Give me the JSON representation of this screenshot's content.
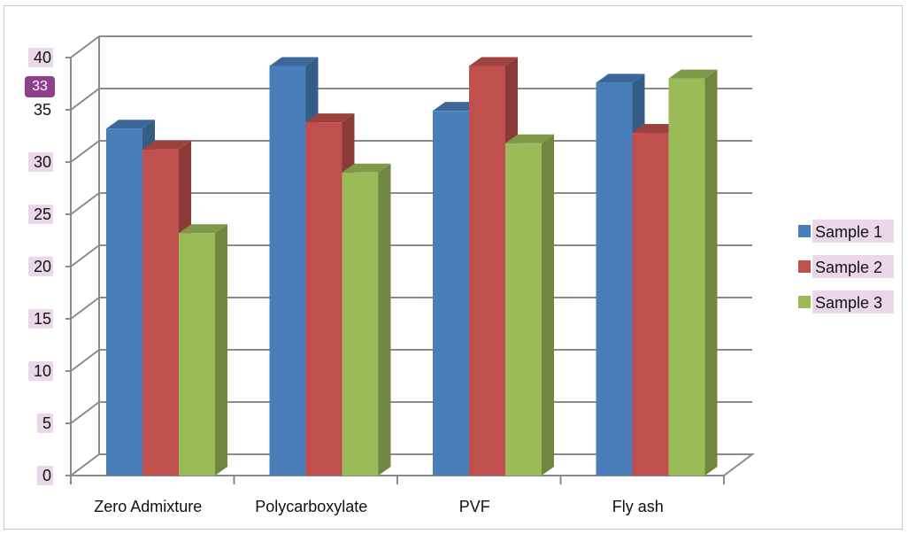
{
  "chart_data": {
    "type": "bar",
    "subtype": "3d-clustered-column",
    "title": "",
    "xlabel": "",
    "ylabel": "",
    "categories": [
      "Zero Admixture",
      "Polycarboxylate",
      "PVF",
      "Fly ash"
    ],
    "series": [
      {
        "name": "Sample 1",
        "color": "#4a7ebb",
        "values": [
          33.2,
          39.2,
          34.9,
          37.6
        ]
      },
      {
        "name": "Sample 2",
        "color": "#c0504d",
        "values": [
          31.2,
          33.8,
          39.2,
          32.8
        ]
      },
      {
        "name": "Sample 3",
        "color": "#9bbb59",
        "values": [
          23.2,
          29.0,
          31.8,
          38.0
        ]
      }
    ],
    "ylim": [
      0,
      40
    ],
    "yticks": [
      "0",
      "5",
      "10",
      "15",
      "20",
      "25",
      "30",
      "35",
      "40"
    ],
    "grid": true,
    "legend": "right",
    "highlight_badge": "33"
  }
}
